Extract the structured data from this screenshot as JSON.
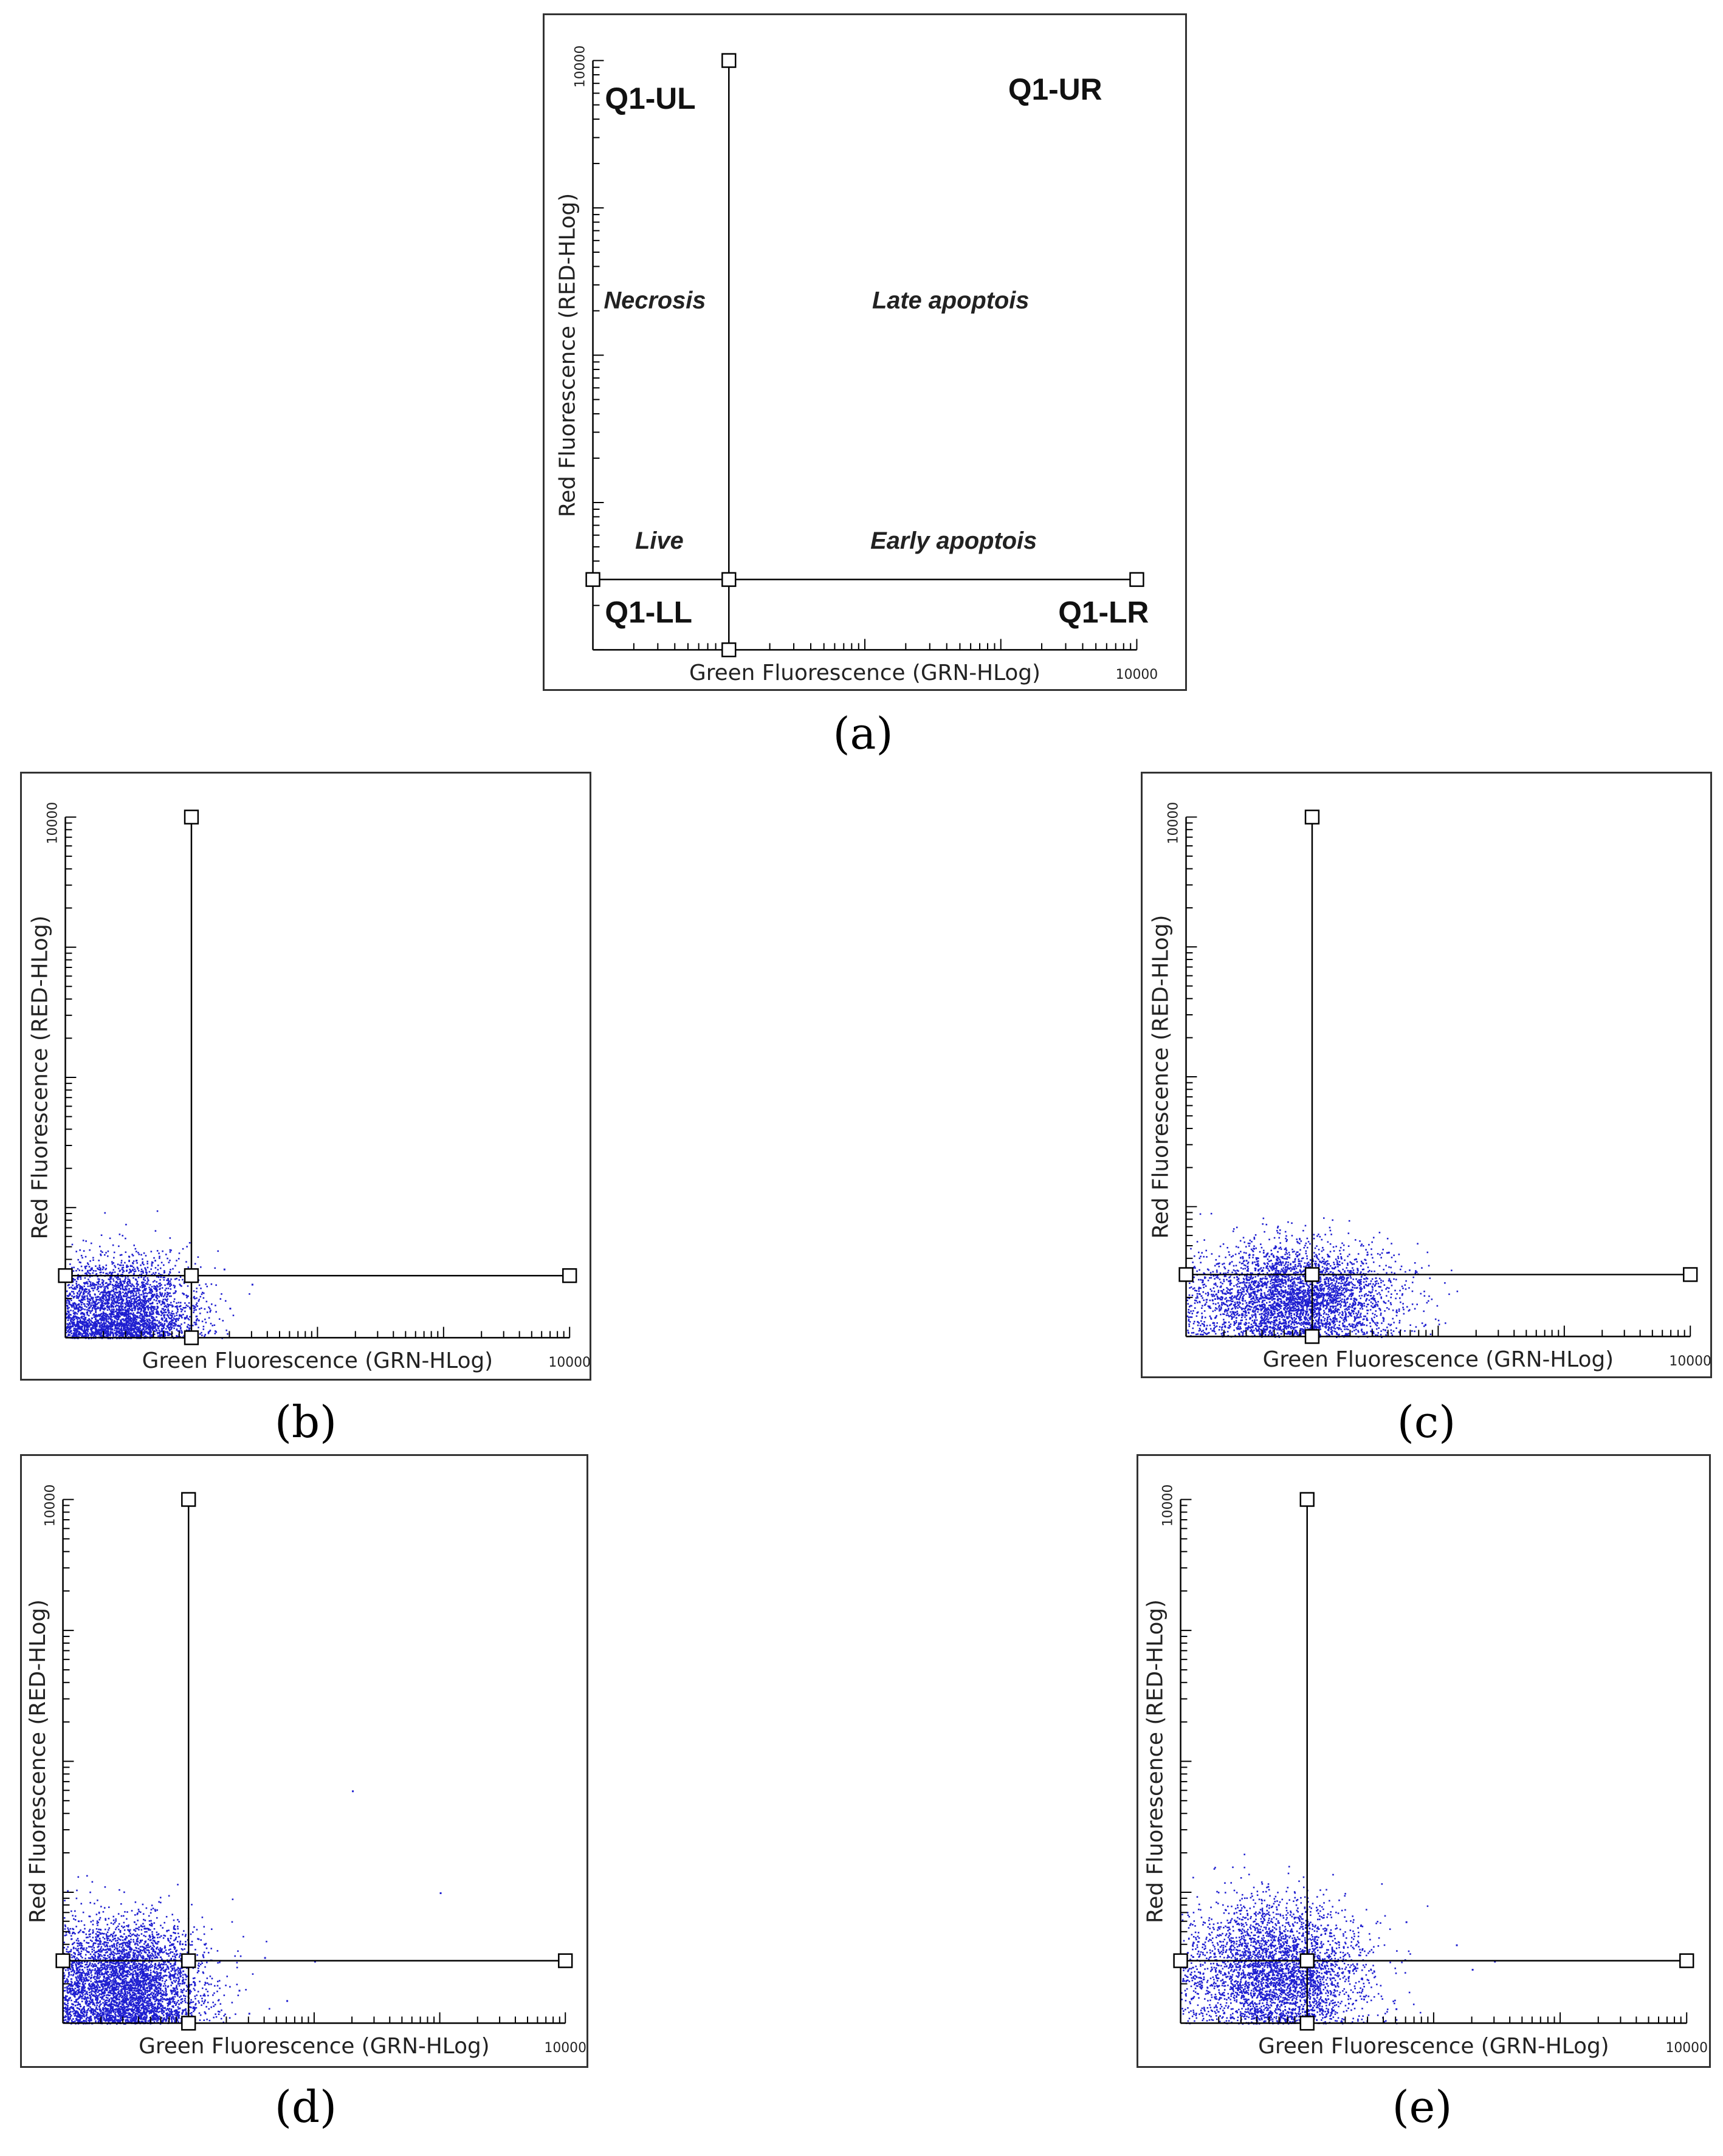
{
  "figure": {
    "marker_color": "#000000",
    "dot_color": "#1f1fd0"
  },
  "chart_data": [
    {
      "id": "a",
      "caption": "(a)",
      "type": "scatter",
      "title": "",
      "xlabel": "Green Fluorescence (GRN-HLog)",
      "ylabel": "Red Fluorescence (RED-HLog)",
      "xmax_label": "10000",
      "ymax_label": "10000",
      "xlim": [
        1,
        10000
      ],
      "ylim": [
        1,
        10000
      ],
      "scale": "log",
      "quadrant_gate": {
        "x": 10,
        "y": 3
      },
      "quadrant_labels": {
        "UL": "Q1-UL",
        "UR": "Q1-UR",
        "LL": "Q1-LL",
        "LR": "Q1-LR"
      },
      "region_labels": {
        "UL": "Necrosis",
        "UR": "Late apoptois",
        "LL": "Live",
        "LR": "Early apoptois"
      },
      "points": []
    },
    {
      "id": "b",
      "caption": "(b)",
      "type": "scatter",
      "xlabel": "Green Fluorescence (GRN-HLog)",
      "ylabel": "Red Fluorescence (RED-HLog)",
      "xmax_label": "10000",
      "ymax_label": "10000",
      "xlim": [
        1,
        10000
      ],
      "ylim": [
        1,
        10000
      ],
      "scale": "log",
      "quadrant_gate": {
        "x": 10,
        "y": 3
      },
      "population": {
        "count": 3200,
        "center_log_x": 0.45,
        "center_log_y": 0.2,
        "spread_log_x": 0.28,
        "spread_log_y": 0.2
      },
      "outliers": [
        [
          30,
          2.6
        ],
        [
          18,
          3.4
        ],
        [
          20,
          1.7
        ]
      ]
    },
    {
      "id": "c",
      "caption": "(c)",
      "type": "scatter",
      "xlabel": "Green Fluorescence (GRN-HLog)",
      "ylabel": "Red Fluorescence (RED-HLog)",
      "xmax_label": "10000",
      "ymax_label": "10000",
      "xlim": [
        1,
        10000
      ],
      "ylim": [
        1,
        10000
      ],
      "scale": "log",
      "quadrant_gate": {
        "x": 10,
        "y": 3
      },
      "population": {
        "count": 3800,
        "center_log_x": 0.85,
        "center_log_y": 0.3,
        "spread_log_x": 0.4,
        "spread_log_y": 0.2
      },
      "outliers": [
        [
          40,
          4.5
        ],
        [
          22,
          4.0
        ],
        [
          25,
          3.7
        ]
      ]
    },
    {
      "id": "d",
      "caption": "(d)",
      "type": "scatter",
      "xlabel": "Green Fluorescence (GRN-HLog)",
      "ylabel": "Red Fluorescence (RED-HLog)",
      "xmax_label": "10000",
      "ymax_label": "10000",
      "xlim": [
        1,
        10000
      ],
      "ylim": [
        1,
        10000
      ],
      "scale": "log",
      "quadrant_gate": {
        "x": 10,
        "y": 3
      },
      "population": {
        "count": 4200,
        "center_log_x": 0.5,
        "center_log_y": 0.3,
        "spread_log_x": 0.3,
        "spread_log_y": 0.24
      },
      "outliers": [
        [
          200,
          60
        ],
        [
          1000,
          10
        ],
        [
          40,
          3.2
        ],
        [
          100,
          3
        ],
        [
          25,
          1.8
        ],
        [
          60,
          1.5
        ],
        [
          30,
          1.2
        ]
      ]
    },
    {
      "id": "e",
      "caption": "(e)",
      "type": "scatter",
      "xlabel": "Green Fluorescence (GRN-HLog)",
      "ylabel": "Red Fluorescence (RED-HLog)",
      "xmax_label": "10000",
      "ymax_label": "10000",
      "xlim": [
        1,
        10000
      ],
      "ylim": [
        1,
        10000
      ],
      "scale": "log",
      "quadrant_gate": {
        "x": 10,
        "y": 3
      },
      "population": {
        "count": 3600,
        "center_log_x": 0.75,
        "center_log_y": 0.4,
        "spread_log_x": 0.35,
        "spread_log_y": 0.26
      },
      "outliers": [
        [
          60,
          6
        ],
        [
          150,
          4
        ],
        [
          300,
          3
        ],
        [
          200,
          2.6
        ],
        [
          50,
          1.3
        ]
      ]
    }
  ]
}
